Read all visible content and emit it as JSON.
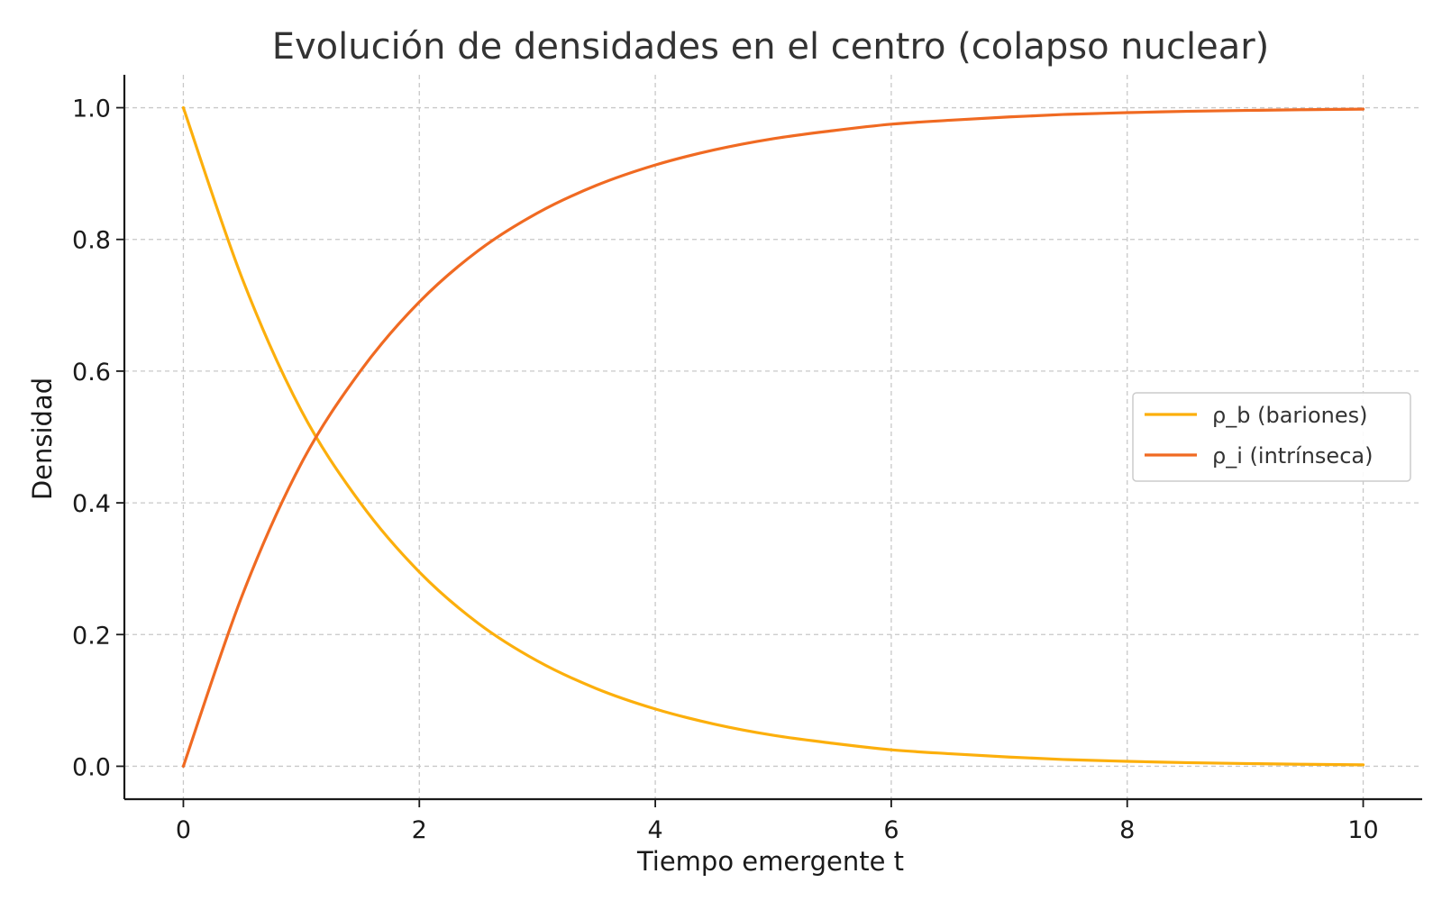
{
  "chart_data": {
    "type": "line",
    "title": "Evolución de densidades en el centro (colapso nuclear)",
    "xlabel": "Tiempo emergente t",
    "ylabel": "Densidad",
    "xlim": [
      -0.5,
      10.5
    ],
    "ylim": [
      -0.05,
      1.05
    ],
    "xticks": [
      0,
      2,
      4,
      6,
      8,
      10
    ],
    "xtick_labels": [
      "0",
      "2",
      "4",
      "6",
      "8",
      "10"
    ],
    "yticks": [
      0.0,
      0.2,
      0.4,
      0.6,
      0.8,
      1.0
    ],
    "ytick_labels": [
      "0.0",
      "0.2",
      "0.4",
      "0.6",
      "0.8",
      "1.0"
    ],
    "grid": true,
    "legend_position": "center-right",
    "x": [
      0,
      0.5,
      1,
      1.5,
      2,
      2.5,
      3,
      3.5,
      4,
      4.5,
      5,
      5.5,
      6,
      6.5,
      7,
      7.5,
      8,
      8.5,
      9,
      9.5,
      10
    ],
    "series": [
      {
        "name": "ρ_b (bariones)",
        "color": "#fcaf0c",
        "values": [
          1.0,
          0.74,
          0.54,
          0.4,
          0.295,
          0.217,
          0.16,
          0.118,
          0.087,
          0.064,
          0.047,
          0.035,
          0.025,
          0.019,
          0.014,
          0.01,
          0.0075,
          0.0055,
          0.0041,
          0.003,
          0.0022
        ]
      },
      {
        "name": "ρ_i (intrínseca)",
        "color": "#f06a22",
        "values": [
          0.0,
          0.26,
          0.46,
          0.6,
          0.705,
          0.783,
          0.84,
          0.882,
          0.913,
          0.936,
          0.953,
          0.965,
          0.975,
          0.981,
          0.986,
          0.99,
          0.9925,
          0.9945,
          0.9959,
          0.997,
          0.9978
        ]
      }
    ]
  }
}
